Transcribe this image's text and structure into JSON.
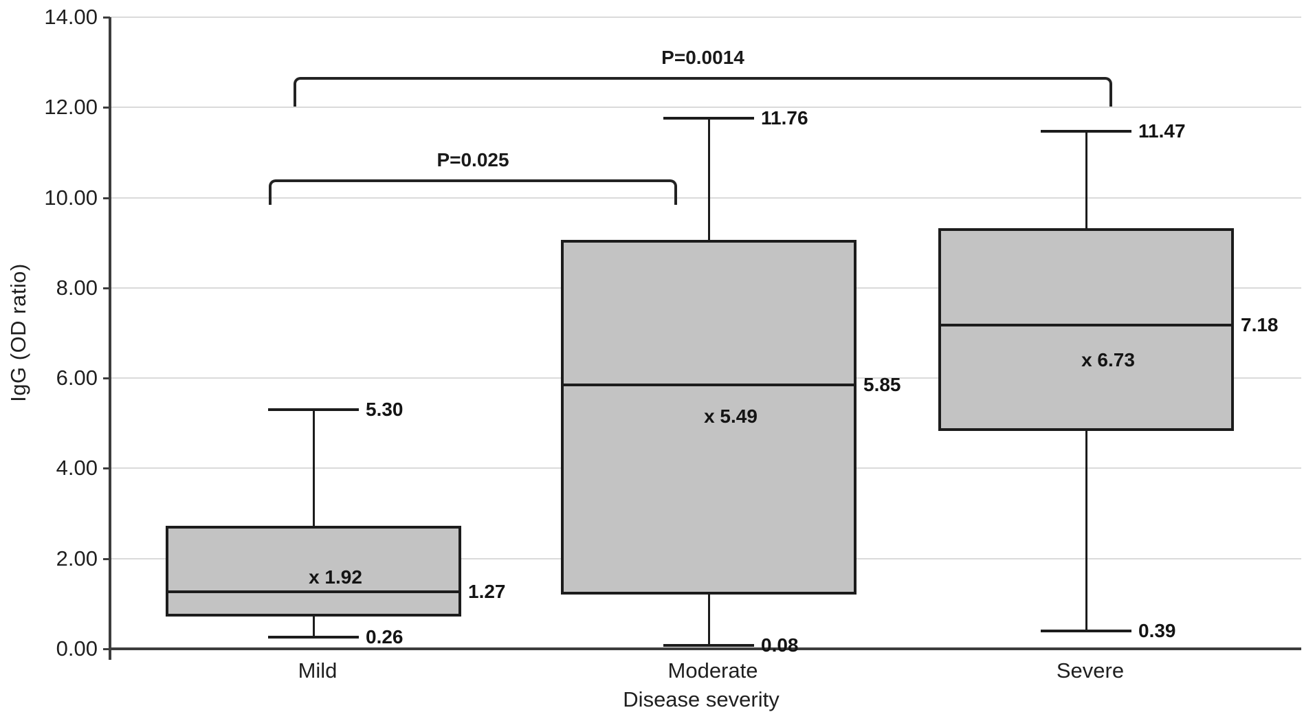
{
  "chart_data": {
    "type": "box",
    "ylabel": "IgG (OD ratio)",
    "xlabel": "Disease severity",
    "ylim": [
      0,
      14
    ],
    "ytick_step": 2,
    "ytick_labels": [
      "0.00",
      "2.00",
      "4.00",
      "6.00",
      "8.00",
      "10.00",
      "12.00",
      "14.00"
    ],
    "grid": true,
    "categories": [
      "Mild",
      "Moderate",
      "Severe"
    ],
    "series": [
      {
        "category": "Mild",
        "min": 0.26,
        "q1": 0.72,
        "median": 1.27,
        "q3": 2.72,
        "max": 5.3,
        "mean": 1.92,
        "labels": {
          "min": "0.26",
          "median": "1.27",
          "max": "5.30",
          "mean": "x 1.92"
        }
      },
      {
        "category": "Moderate",
        "min": 0.08,
        "q1": 1.2,
        "median": 5.85,
        "q3": 9.07,
        "max": 11.76,
        "mean": 5.49,
        "labels": {
          "min": "0.08",
          "median": "5.85",
          "max": "11.76",
          "mean": "x 5.49"
        }
      },
      {
        "category": "Severe",
        "min": 0.39,
        "q1": 4.83,
        "median": 7.18,
        "q3": 9.33,
        "max": 11.47,
        "mean": 6.73,
        "labels": {
          "min": "0.39",
          "median": "7.18",
          "max": "11.47",
          "mean": "x 6.73"
        }
      }
    ],
    "comparisons": [
      {
        "label": "P=0.025",
        "from": 0,
        "to": 1,
        "line_y_value": 10.4,
        "tick_drop_value": 0.5
      },
      {
        "label": "P=0.0014",
        "from": 0,
        "to": 2,
        "line_y_value": 12.68,
        "tick_drop_value": 0.6
      }
    ],
    "colors": {
      "box_fill": "#c3c3c3",
      "box_border": "#1c1c1c",
      "whisker": "#1c1c1c",
      "grid": "#dadada",
      "axis": "#3d3d3d",
      "text": "#1f1f1f"
    }
  }
}
